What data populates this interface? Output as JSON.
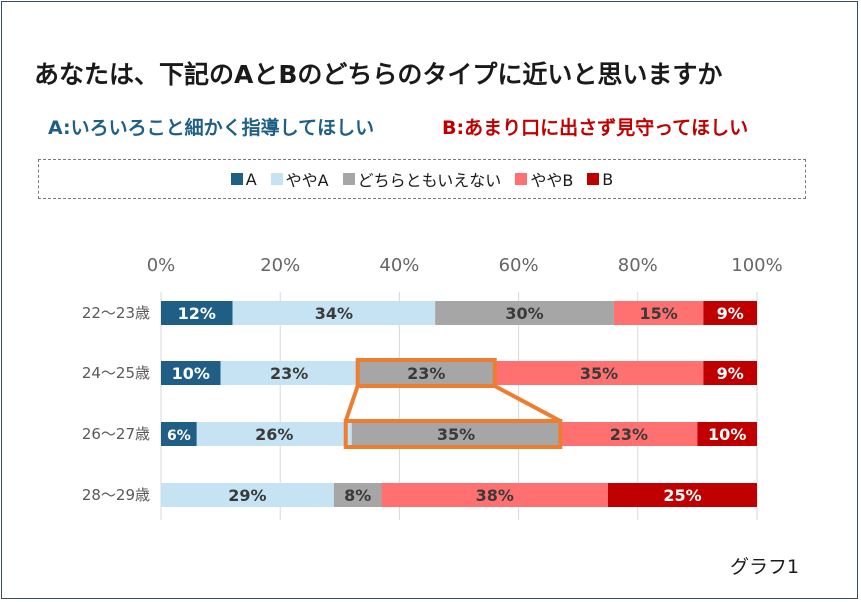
{
  "title": "あなたは、下記のAとBのどちらのタイプに近いと思いますか",
  "subtitle_a": "A:いろいろこと細かく指導してほしい",
  "subtitle_b": "B:あまり口に出さず見守ってほしい",
  "caption": "グラフ1",
  "colors": {
    "A": "#1f5f86",
    "yaya_A": "#c5e3f2",
    "neutral": "#a6a6a6",
    "yaya_B": "#ff7070",
    "B": "#c00000",
    "highlight": "#ed7d31"
  },
  "chart_data": {
    "type": "bar",
    "orientation": "horizontal",
    "stacked": "percent",
    "categories": [
      "22～23歳",
      "24～25歳",
      "26～27歳",
      "28～29歳"
    ],
    "series": [
      {
        "name": "A",
        "values": [
          12,
          10,
          6,
          0
        ]
      },
      {
        "name": "ややA",
        "values": [
          34,
          23,
          26,
          29
        ]
      },
      {
        "name": "どちらともいえない",
        "values": [
          30,
          23,
          35,
          8
        ]
      },
      {
        "name": "ややB",
        "values": [
          15,
          35,
          23,
          38
        ]
      },
      {
        "name": "B",
        "values": [
          9,
          9,
          10,
          25
        ]
      }
    ],
    "xticks": [
      "0%",
      "20%",
      "40%",
      "60%",
      "80%",
      "100%"
    ],
    "xlim": [
      0,
      100
    ],
    "legend": "top",
    "grid": true
  }
}
